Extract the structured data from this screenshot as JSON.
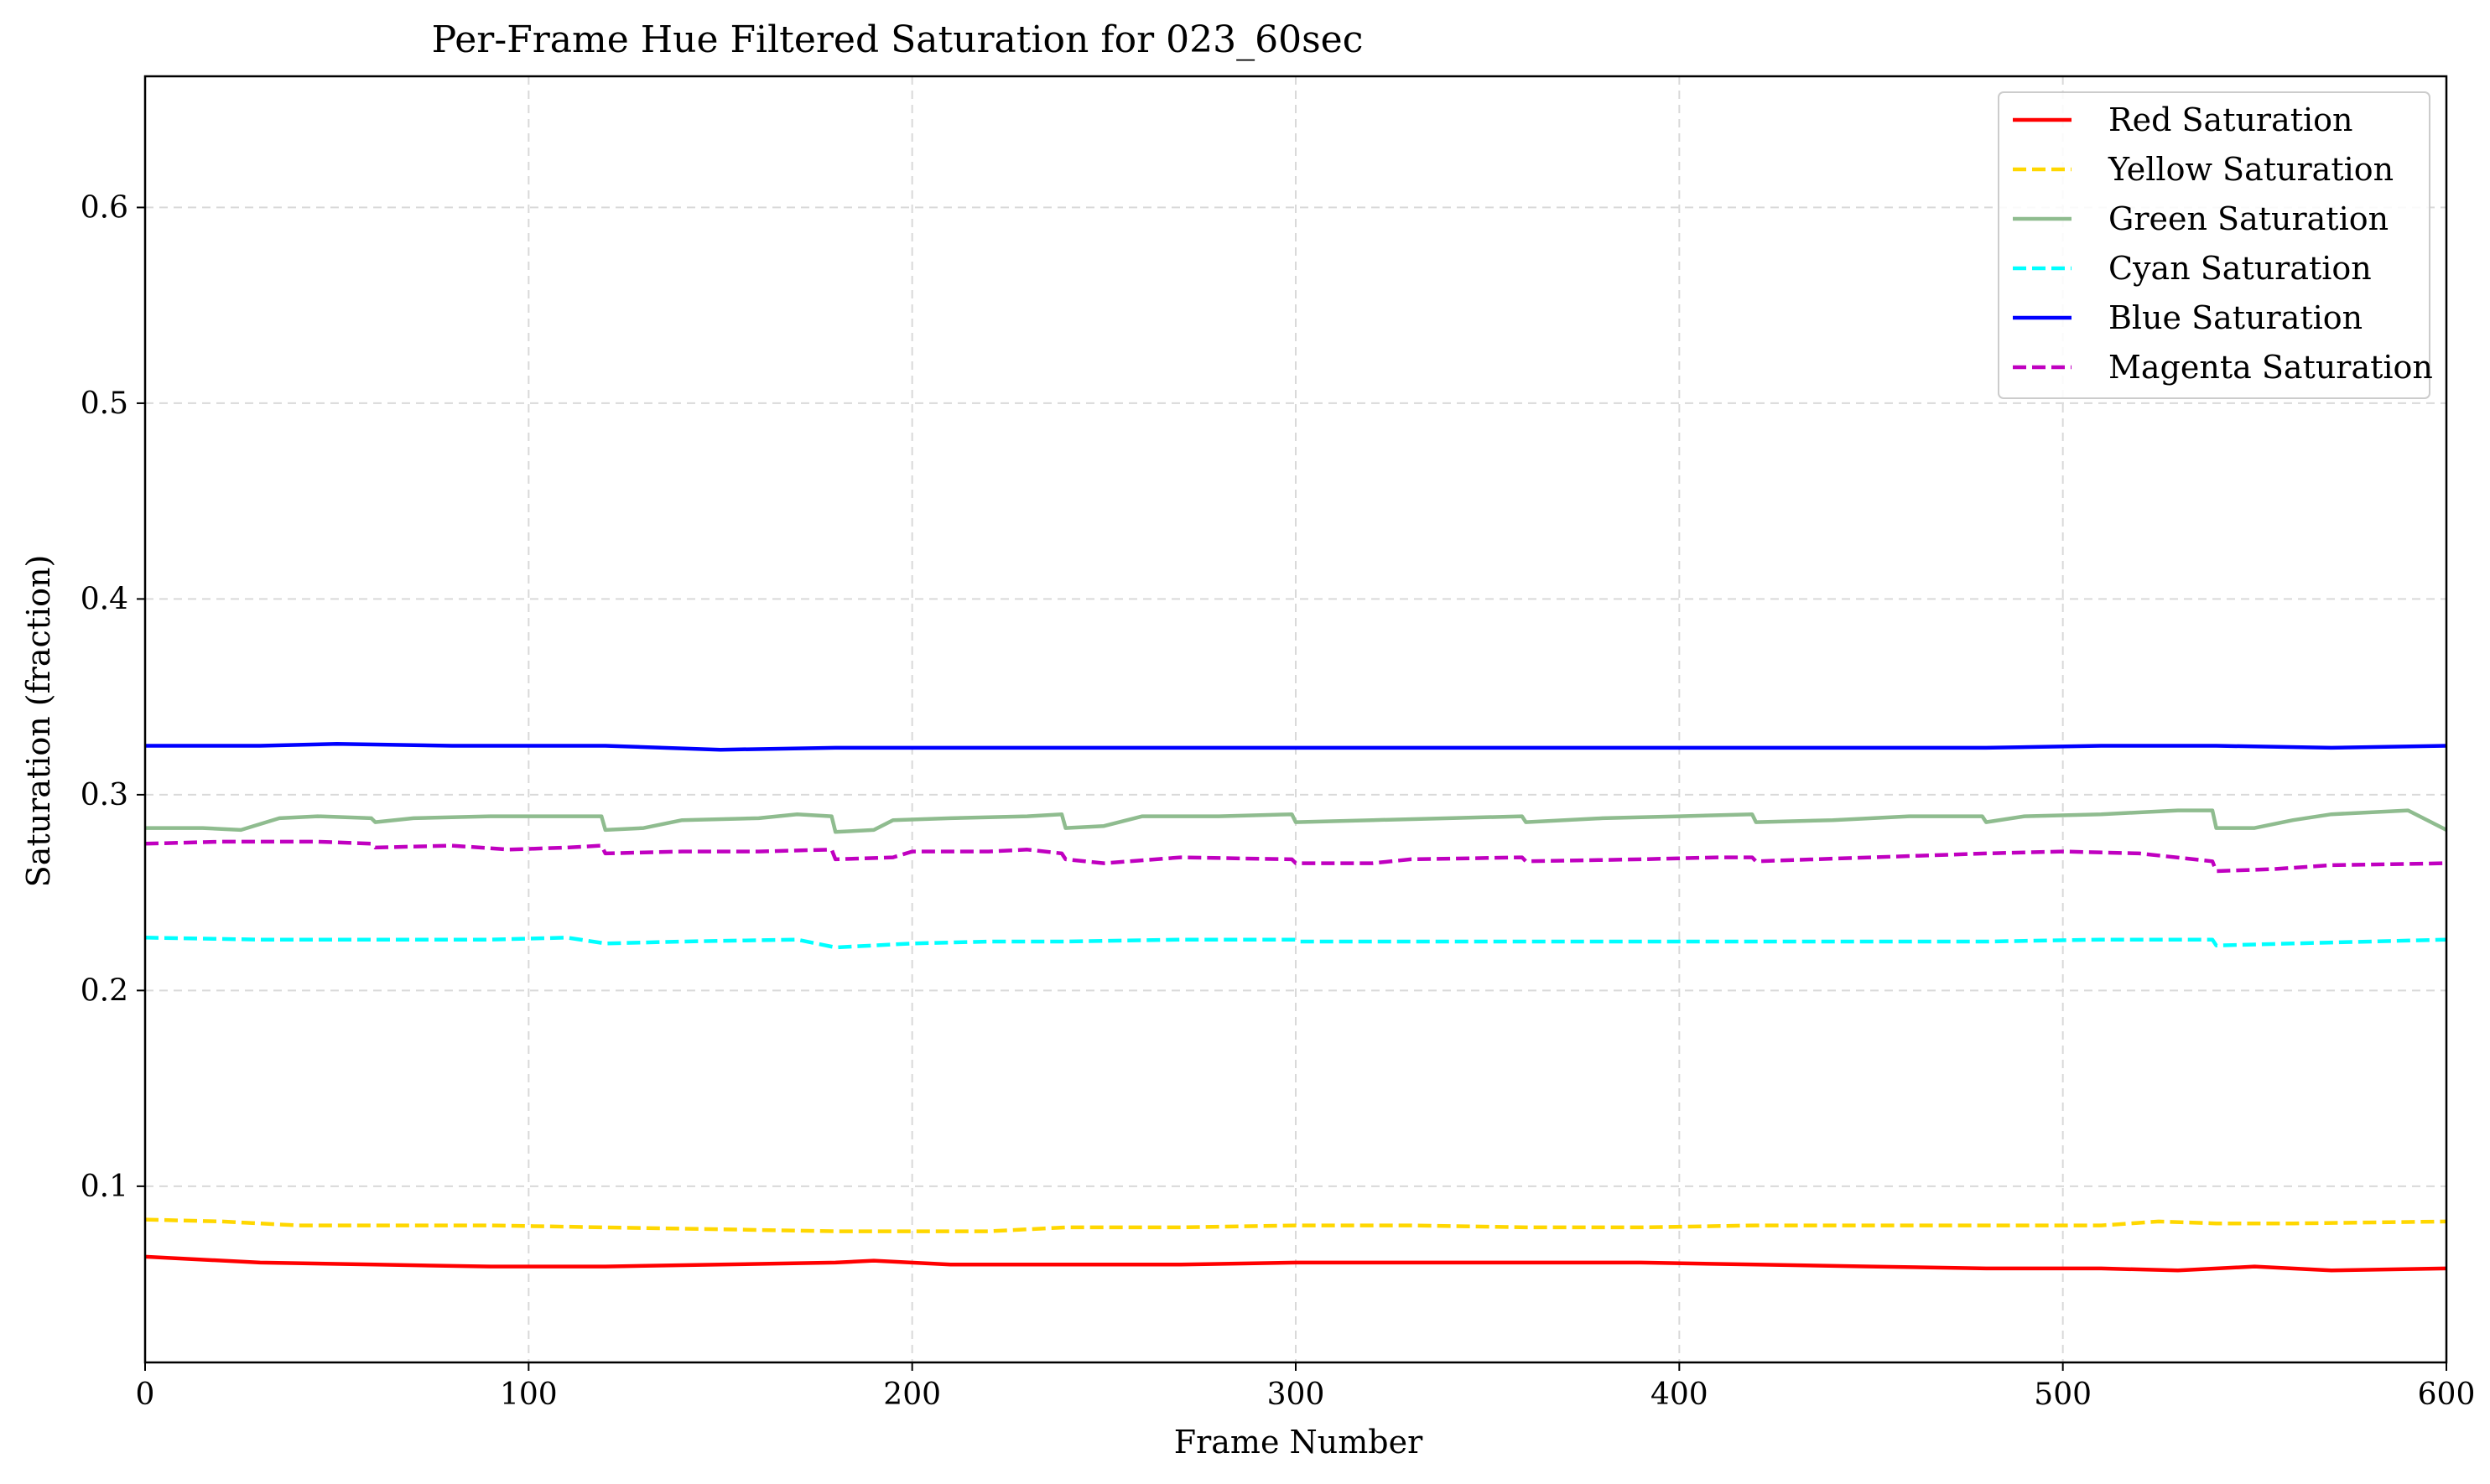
{
  "chart_data": {
    "type": "line",
    "title": "Per-Frame Hue Filtered Saturation for 023_60sec",
    "xlabel": "Frame Number",
    "ylabel": "Saturation (fraction)",
    "xlim": [
      0,
      600
    ],
    "ylim": [
      0.01,
      0.667
    ],
    "xticks": [
      0,
      100,
      200,
      300,
      400,
      500,
      600
    ],
    "yticks": [
      0.1,
      0.2,
      0.3,
      0.4,
      0.5,
      0.6
    ],
    "xtick_labels": [
      "0",
      "100",
      "200",
      "300",
      "400",
      "500",
      "600"
    ],
    "ytick_labels": [
      "0.1",
      "0.2",
      "0.3",
      "0.4",
      "0.5",
      "0.6"
    ],
    "grid": true,
    "legend_position": "top-right",
    "series": [
      {
        "name": "Red Saturation",
        "color": "#ff0000",
        "style": "solid",
        "points": [
          [
            0,
            0.064
          ],
          [
            30,
            0.061
          ],
          [
            60,
            0.06
          ],
          [
            90,
            0.059
          ],
          [
            120,
            0.059
          ],
          [
            150,
            0.06
          ],
          [
            180,
            0.061
          ],
          [
            190,
            0.062
          ],
          [
            210,
            0.06
          ],
          [
            240,
            0.06
          ],
          [
            270,
            0.06
          ],
          [
            300,
            0.061
          ],
          [
            330,
            0.061
          ],
          [
            360,
            0.061
          ],
          [
            390,
            0.061
          ],
          [
            420,
            0.06
          ],
          [
            450,
            0.059
          ],
          [
            480,
            0.058
          ],
          [
            510,
            0.058
          ],
          [
            530,
            0.057
          ],
          [
            550,
            0.059
          ],
          [
            570,
            0.057
          ],
          [
            600,
            0.058
          ]
        ]
      },
      {
        "name": "Yellow Saturation",
        "color": "#ffd700",
        "style": "dashed",
        "points": [
          [
            0,
            0.083
          ],
          [
            20,
            0.082
          ],
          [
            40,
            0.08
          ],
          [
            60,
            0.08
          ],
          [
            90,
            0.08
          ],
          [
            120,
            0.079
          ],
          [
            150,
            0.078
          ],
          [
            180,
            0.077
          ],
          [
            200,
            0.077
          ],
          [
            220,
            0.077
          ],
          [
            240,
            0.079
          ],
          [
            270,
            0.079
          ],
          [
            300,
            0.08
          ],
          [
            330,
            0.08
          ],
          [
            360,
            0.079
          ],
          [
            390,
            0.079
          ],
          [
            420,
            0.08
          ],
          [
            450,
            0.08
          ],
          [
            480,
            0.08
          ],
          [
            510,
            0.08
          ],
          [
            525,
            0.082
          ],
          [
            540,
            0.081
          ],
          [
            560,
            0.081
          ],
          [
            600,
            0.082
          ]
        ]
      },
      {
        "name": "Green Saturation",
        "color": "#8fbc8f",
        "style": "solid",
        "points": [
          [
            0,
            0.283
          ],
          [
            15,
            0.283
          ],
          [
            25,
            0.282
          ],
          [
            35,
            0.288
          ],
          [
            45,
            0.289
          ],
          [
            59,
            0.288
          ],
          [
            60,
            0.286
          ],
          [
            70,
            0.288
          ],
          [
            90,
            0.289
          ],
          [
            110,
            0.289
          ],
          [
            119,
            0.289
          ],
          [
            120,
            0.282
          ],
          [
            130,
            0.283
          ],
          [
            140,
            0.287
          ],
          [
            160,
            0.288
          ],
          [
            170,
            0.29
          ],
          [
            179,
            0.289
          ],
          [
            180,
            0.281
          ],
          [
            190,
            0.282
          ],
          [
            195,
            0.287
          ],
          [
            210,
            0.288
          ],
          [
            230,
            0.289
          ],
          [
            239,
            0.29
          ],
          [
            240,
            0.283
          ],
          [
            250,
            0.284
          ],
          [
            260,
            0.289
          ],
          [
            280,
            0.289
          ],
          [
            299,
            0.29
          ],
          [
            300,
            0.286
          ],
          [
            320,
            0.287
          ],
          [
            340,
            0.288
          ],
          [
            359,
            0.289
          ],
          [
            360,
            0.286
          ],
          [
            380,
            0.288
          ],
          [
            400,
            0.289
          ],
          [
            419,
            0.29
          ],
          [
            420,
            0.286
          ],
          [
            440,
            0.287
          ],
          [
            460,
            0.289
          ],
          [
            479,
            0.289
          ],
          [
            480,
            0.286
          ],
          [
            490,
            0.289
          ],
          [
            510,
            0.29
          ],
          [
            530,
            0.292
          ],
          [
            539,
            0.292
          ],
          [
            540,
            0.283
          ],
          [
            550,
            0.283
          ],
          [
            560,
            0.287
          ],
          [
            570,
            0.29
          ],
          [
            590,
            0.292
          ],
          [
            600,
            0.282
          ]
        ]
      },
      {
        "name": "Cyan Saturation",
        "color": "#00ffff",
        "style": "dashed",
        "points": [
          [
            0,
            0.227
          ],
          [
            30,
            0.226
          ],
          [
            60,
            0.226
          ],
          [
            90,
            0.226
          ],
          [
            110,
            0.227
          ],
          [
            120,
            0.224
          ],
          [
            140,
            0.225
          ],
          [
            170,
            0.226
          ],
          [
            180,
            0.222
          ],
          [
            200,
            0.224
          ],
          [
            220,
            0.225
          ],
          [
            240,
            0.225
          ],
          [
            270,
            0.226
          ],
          [
            300,
            0.226
          ],
          [
            301,
            0.225
          ],
          [
            330,
            0.225
          ],
          [
            360,
            0.225
          ],
          [
            390,
            0.225
          ],
          [
            420,
            0.225
          ],
          [
            450,
            0.225
          ],
          [
            480,
            0.225
          ],
          [
            510,
            0.226
          ],
          [
            539,
            0.226
          ],
          [
            540,
            0.223
          ],
          [
            560,
            0.224
          ],
          [
            600,
            0.226
          ]
        ]
      },
      {
        "name": "Blue Saturation",
        "color": "#0000ff",
        "style": "solid",
        "points": [
          [
            0,
            0.325
          ],
          [
            30,
            0.325
          ],
          [
            50,
            0.326
          ],
          [
            80,
            0.325
          ],
          [
            120,
            0.325
          ],
          [
            150,
            0.323
          ],
          [
            180,
            0.324
          ],
          [
            210,
            0.324
          ],
          [
            240,
            0.324
          ],
          [
            270,
            0.324
          ],
          [
            300,
            0.324
          ],
          [
            330,
            0.324
          ],
          [
            360,
            0.324
          ],
          [
            390,
            0.324
          ],
          [
            420,
            0.324
          ],
          [
            450,
            0.324
          ],
          [
            480,
            0.324
          ],
          [
            510,
            0.325
          ],
          [
            540,
            0.325
          ],
          [
            570,
            0.324
          ],
          [
            600,
            0.325
          ]
        ]
      },
      {
        "name": "Magenta Saturation",
        "color": "#c000c0",
        "style": "dashed",
        "points": [
          [
            0,
            0.275
          ],
          [
            20,
            0.276
          ],
          [
            45,
            0.276
          ],
          [
            59,
            0.275
          ],
          [
            60,
            0.273
          ],
          [
            80,
            0.274
          ],
          [
            95,
            0.272
          ],
          [
            110,
            0.273
          ],
          [
            119,
            0.274
          ],
          [
            120,
            0.27
          ],
          [
            140,
            0.271
          ],
          [
            160,
            0.271
          ],
          [
            179,
            0.272
          ],
          [
            180,
            0.267
          ],
          [
            195,
            0.268
          ],
          [
            200,
            0.271
          ],
          [
            220,
            0.271
          ],
          [
            230,
            0.272
          ],
          [
            239,
            0.27
          ],
          [
            240,
            0.267
          ],
          [
            250,
            0.265
          ],
          [
            270,
            0.268
          ],
          [
            299,
            0.267
          ],
          [
            300,
            0.265
          ],
          [
            320,
            0.265
          ],
          [
            330,
            0.267
          ],
          [
            359,
            0.268
          ],
          [
            360,
            0.266
          ],
          [
            390,
            0.267
          ],
          [
            410,
            0.268
          ],
          [
            419,
            0.268
          ],
          [
            420,
            0.266
          ],
          [
            450,
            0.268
          ],
          [
            480,
            0.27
          ],
          [
            500,
            0.271
          ],
          [
            520,
            0.27
          ],
          [
            539,
            0.266
          ],
          [
            540,
            0.261
          ],
          [
            555,
            0.262
          ],
          [
            570,
            0.264
          ],
          [
            600,
            0.265
          ]
        ]
      }
    ]
  }
}
